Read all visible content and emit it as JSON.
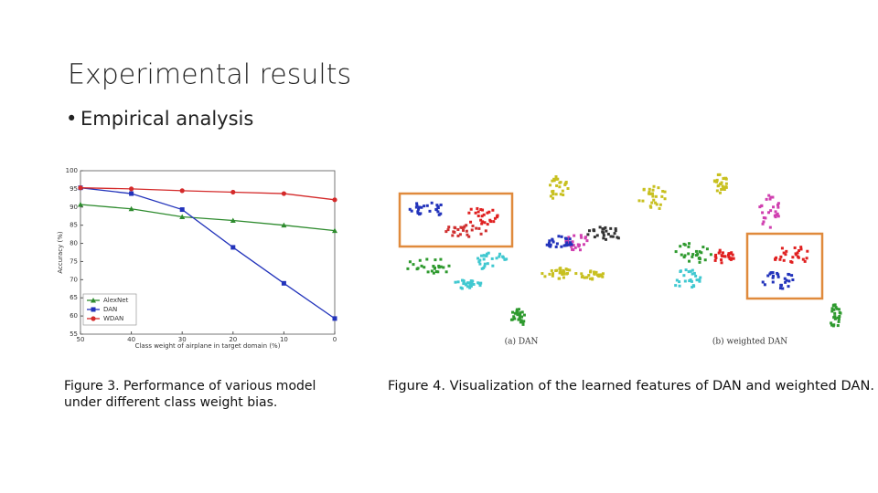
{
  "slide": {
    "title": "Experimental results",
    "bullet": "Empirical analysis",
    "figure3_caption": [
      "Figure  3. Performance of various model",
      "under different class weight bias."
    ],
    "figure4_caption": "Figure  4. Visualization of the learned features of DAN and weighted DAN.",
    "figure4_labels": [
      "(a) DAN",
      "(b) weighted DAN"
    ]
  },
  "chart_data": {
    "type": "line",
    "x_label": "Class weight of airplane in target domain (%)",
    "y_label": "Accuracy (%)",
    "x": [
      50,
      40,
      30,
      20,
      10,
      0
    ],
    "xlim": [
      50,
      0
    ],
    "xticks": [
      50,
      40,
      30,
      20,
      10,
      0
    ],
    "ylim": [
      55,
      100
    ],
    "yticks": [
      55,
      60,
      65,
      70,
      75,
      80,
      85,
      90,
      95,
      100
    ],
    "legend": "lower left",
    "grid": false,
    "series": [
      {
        "name": "AlexNet",
        "color": "#2e8b2e",
        "marker": "triangle",
        "values": [
          90.7,
          89.5,
          87.3,
          86.3,
          85,
          83.5
        ]
      },
      {
        "name": "DAN",
        "color": "#2233bb",
        "marker": "square",
        "values": [
          95.3,
          93.7,
          89.3,
          78.9,
          69,
          59.3
        ]
      },
      {
        "name": "WDAN",
        "color": "#d42a2a",
        "marker": "circle",
        "values": [
          95.3,
          95,
          94.5,
          94.1,
          93.7,
          92
        ]
      }
    ]
  }
}
